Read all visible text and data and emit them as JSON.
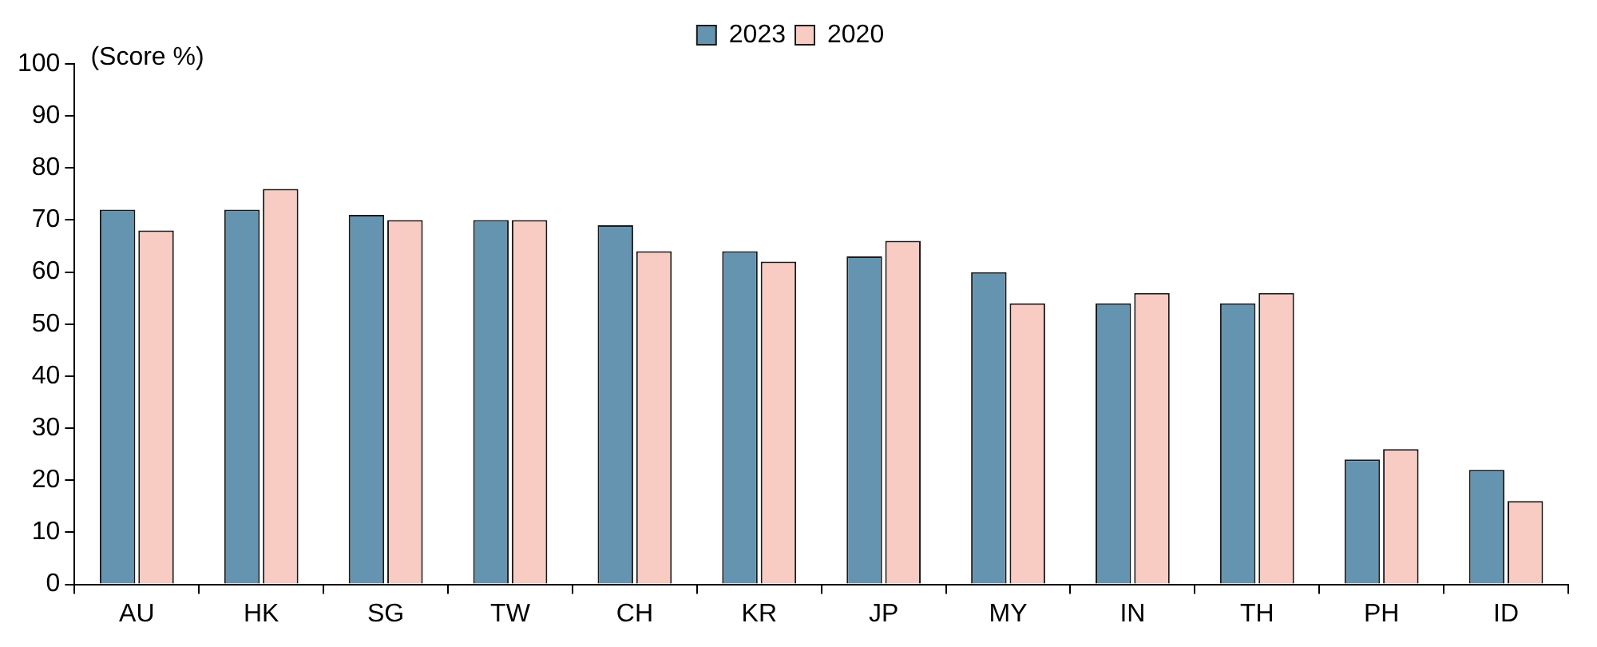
{
  "chart_data": {
    "type": "bar",
    "categories": [
      "AU",
      "HK",
      "SG",
      "TW",
      "CH",
      "KR",
      "JP",
      "MY",
      "IN",
      "TH",
      "PH",
      "ID"
    ],
    "series": [
      {
        "name": "2023",
        "color": "#6594b1",
        "values": [
          72,
          72,
          71,
          70,
          69,
          64,
          63,
          60,
          54,
          54,
          24,
          22
        ]
      },
      {
        "name": "2020",
        "color": "#f8cbc3",
        "values": [
          68,
          76,
          70,
          70,
          64,
          62,
          66,
          54,
          56,
          56,
          26,
          16
        ]
      }
    ],
    "ylim": [
      0,
      100
    ],
    "yticks": [
      0,
      10,
      20,
      30,
      40,
      50,
      60,
      70,
      80,
      90,
      100
    ],
    "grid": false,
    "legend": "top",
    "annotations": [
      "(Score %)"
    ]
  }
}
